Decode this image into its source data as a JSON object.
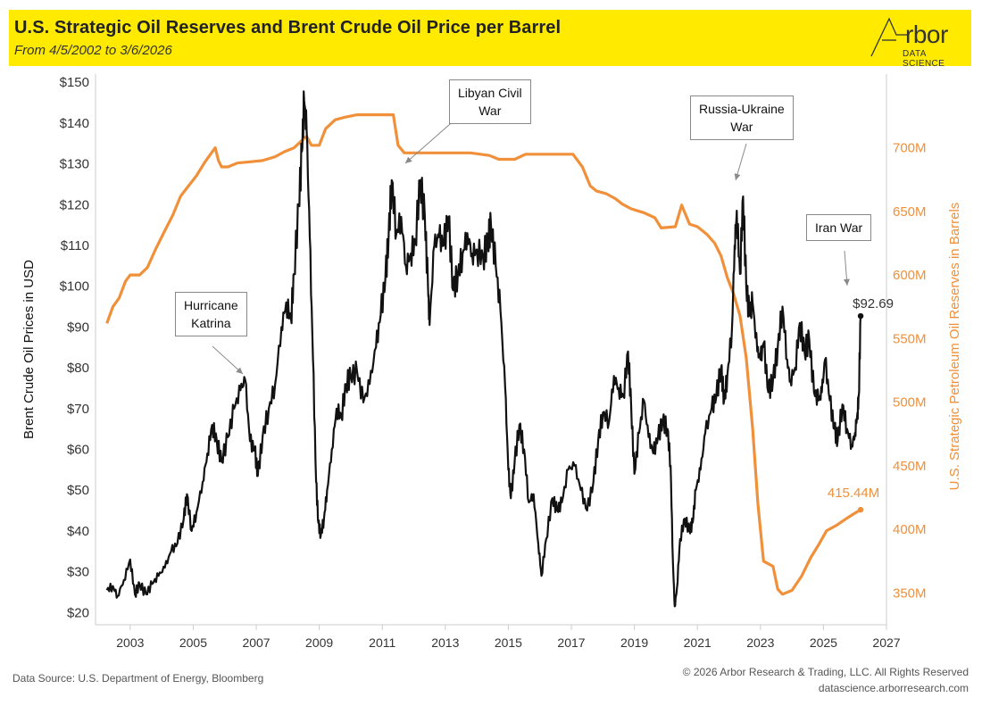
{
  "header": {
    "title": "U.S. Strategic Oil Reserves and Brent Crude Oil Price per Barrel",
    "subtitle": "From 4/5/2002 to 3/6/2026",
    "logo_main": "rbor",
    "logo_sub": "DATA SCIENCE"
  },
  "footer": {
    "source": "Data Source: U.S. Department of Energy, Bloomberg",
    "copyright": "© 2026 Arbor Research & Trading, LLC. All Rights Reserved",
    "website": "datascience.arborresearch.com"
  },
  "annotations": {
    "katrina_line1": "Hurricane",
    "katrina_line2": "Katrina",
    "libya_line1": "Libyan Civil",
    "libya_line2": "War",
    "russia_line1": "Russia-Ukraine",
    "russia_line2": "War",
    "iran": "Iran War"
  },
  "chart_data": {
    "type": "line",
    "title": "U.S. Strategic Oil Reserves and Brent Crude Oil Price per Barrel",
    "subtitle": "From 4/5/2002 to 3/6/2026",
    "xlabel": "",
    "ylabel": "Brent Crude Oil Prices in USD",
    "y2label": "U.S. Strategic Petroleum Oil Reserves in Barrels",
    "xlim": [
      2001.9,
      2027.0
    ],
    "ylim": [
      17,
      152
    ],
    "y2lim": [
      325,
      758
    ],
    "x_ticks": [
      2003,
      2005,
      2007,
      2009,
      2011,
      2013,
      2015,
      2017,
      2019,
      2021,
      2023,
      2025,
      2027
    ],
    "y_ticks": [
      20,
      30,
      40,
      50,
      60,
      70,
      80,
      90,
      100,
      110,
      120,
      130,
      140,
      150
    ],
    "y_tick_labels": [
      "$20",
      "$30",
      "$40",
      "$50",
      "$60",
      "$70",
      "$80",
      "$90",
      "$100",
      "$110",
      "$120",
      "$130",
      "$140",
      "$150"
    ],
    "y2_ticks": [
      350,
      400,
      450,
      500,
      550,
      600,
      650,
      700
    ],
    "y2_tick_labels": [
      "350M",
      "400M",
      "450M",
      "500M",
      "550M",
      "600M",
      "650M",
      "700M"
    ],
    "grid": false,
    "series": [
      {
        "name": "Brent Crude Oil Price (USD)",
        "axis": "left",
        "color": "#111111",
        "end_label": "$92.69",
        "points": [
          [
            2002.26,
            25.5
          ],
          [
            2002.45,
            26.5
          ],
          [
            2002.6,
            24.0
          ],
          [
            2002.8,
            28.0
          ],
          [
            2003.0,
            33.0
          ],
          [
            2003.15,
            24.5
          ],
          [
            2003.3,
            27.0
          ],
          [
            2003.5,
            24.5
          ],
          [
            2003.7,
            27.0
          ],
          [
            2003.9,
            29.0
          ],
          [
            2004.1,
            31.0
          ],
          [
            2004.3,
            35.0
          ],
          [
            2004.5,
            37.0
          ],
          [
            2004.7,
            43.0
          ],
          [
            2004.8,
            49.0
          ],
          [
            2004.95,
            40.0
          ],
          [
            2005.1,
            44.5
          ],
          [
            2005.3,
            52.0
          ],
          [
            2005.45,
            59.0
          ],
          [
            2005.6,
            66.0
          ],
          [
            2005.75,
            62.0
          ],
          [
            2005.9,
            57.0
          ],
          [
            2006.1,
            63.0
          ],
          [
            2006.3,
            70.0
          ],
          [
            2006.5,
            74.5
          ],
          [
            2006.65,
            77.0
          ],
          [
            2006.8,
            62.0
          ],
          [
            2006.95,
            60.0
          ],
          [
            2007.05,
            53.5
          ],
          [
            2007.2,
            63.0
          ],
          [
            2007.4,
            70.0
          ],
          [
            2007.6,
            76.0
          ],
          [
            2007.8,
            90.0
          ],
          [
            2007.95,
            96.0
          ],
          [
            2008.1,
            92.0
          ],
          [
            2008.2,
            103.0
          ],
          [
            2008.35,
            120.0
          ],
          [
            2008.45,
            133.0
          ],
          [
            2008.52,
            145.5
          ],
          [
            2008.6,
            138.0
          ],
          [
            2008.7,
            112.0
          ],
          [
            2008.8,
            82.0
          ],
          [
            2008.9,
            52.0
          ],
          [
            2008.97,
            42.0
          ],
          [
            2009.05,
            39.0
          ],
          [
            2009.15,
            43.0
          ],
          [
            2009.25,
            50.0
          ],
          [
            2009.4,
            60.0
          ],
          [
            2009.55,
            70.0
          ],
          [
            2009.7,
            68.0
          ],
          [
            2009.85,
            76.0
          ],
          [
            2010.0,
            78.0
          ],
          [
            2010.2,
            79.0
          ],
          [
            2010.4,
            71.5
          ],
          [
            2010.6,
            76.0
          ],
          [
            2010.8,
            85.0
          ],
          [
            2010.95,
            93.0
          ],
          [
            2011.1,
            102.0
          ],
          [
            2011.2,
            112.0
          ],
          [
            2011.3,
            126.0
          ],
          [
            2011.45,
            113.0
          ],
          [
            2011.6,
            117.0
          ],
          [
            2011.75,
            105.0
          ],
          [
            2011.9,
            108.0
          ],
          [
            2012.05,
            111.0
          ],
          [
            2012.2,
            126.0
          ],
          [
            2012.35,
            117.0
          ],
          [
            2012.45,
            100.0
          ],
          [
            2012.5,
            90.5
          ],
          [
            2012.65,
            110.0
          ],
          [
            2012.8,
            112.0
          ],
          [
            2012.95,
            110.0
          ],
          [
            2013.1,
            117.0
          ],
          [
            2013.25,
            99.0
          ],
          [
            2013.4,
            103.0
          ],
          [
            2013.55,
            108.0
          ],
          [
            2013.7,
            113.0
          ],
          [
            2013.85,
            108.0
          ],
          [
            2014.0,
            109.0
          ],
          [
            2014.2,
            107.0
          ],
          [
            2014.35,
            111.0
          ],
          [
            2014.45,
            115.0
          ],
          [
            2014.6,
            105.0
          ],
          [
            2014.75,
            94.0
          ],
          [
            2014.9,
            75.0
          ],
          [
            2015.0,
            55.0
          ],
          [
            2015.08,
            48.0
          ],
          [
            2015.2,
            57.0
          ],
          [
            2015.35,
            66.0
          ],
          [
            2015.5,
            60.0
          ],
          [
            2015.65,
            47.0
          ],
          [
            2015.8,
            49.0
          ],
          [
            2015.95,
            37.0
          ],
          [
            2016.05,
            29.0
          ],
          [
            2016.2,
            38.0
          ],
          [
            2016.4,
            48.0
          ],
          [
            2016.55,
            45.0
          ],
          [
            2016.7,
            47.0
          ],
          [
            2016.9,
            55.0
          ],
          [
            2017.1,
            56.0
          ],
          [
            2017.3,
            50.0
          ],
          [
            2017.5,
            45.0
          ],
          [
            2017.7,
            52.0
          ],
          [
            2017.85,
            62.0
          ],
          [
            2018.0,
            69.0
          ],
          [
            2018.2,
            67.0
          ],
          [
            2018.35,
            78.0
          ],
          [
            2018.5,
            75.0
          ],
          [
            2018.65,
            73.0
          ],
          [
            2018.8,
            84.0
          ],
          [
            2018.9,
            70.0
          ],
          [
            2019.0,
            54.0
          ],
          [
            2019.15,
            64.0
          ],
          [
            2019.3,
            72.0
          ],
          [
            2019.45,
            63.0
          ],
          [
            2019.6,
            59.0
          ],
          [
            2019.75,
            63.0
          ],
          [
            2019.9,
            67.0
          ],
          [
            2020.05,
            65.0
          ],
          [
            2020.15,
            56.0
          ],
          [
            2020.22,
            33.0
          ],
          [
            2020.28,
            21.5
          ],
          [
            2020.35,
            26.0
          ],
          [
            2020.45,
            38.0
          ],
          [
            2020.6,
            43.0
          ],
          [
            2020.75,
            40.0
          ],
          [
            2020.85,
            42.0
          ],
          [
            2020.95,
            50.0
          ],
          [
            2021.1,
            55.0
          ],
          [
            2021.25,
            64.0
          ],
          [
            2021.45,
            70.0
          ],
          [
            2021.6,
            73.0
          ],
          [
            2021.75,
            80.0
          ],
          [
            2021.85,
            72.0
          ],
          [
            2021.95,
            78.0
          ],
          [
            2022.1,
            90.0
          ],
          [
            2022.18,
            110.0
          ],
          [
            2022.25,
            118.5
          ],
          [
            2022.35,
            103.0
          ],
          [
            2022.45,
            122.0
          ],
          [
            2022.55,
            100.0
          ],
          [
            2022.65,
            93.0
          ],
          [
            2022.75,
            96.0
          ],
          [
            2022.9,
            84.0
          ],
          [
            2023.0,
            82.0
          ],
          [
            2023.1,
            86.0
          ],
          [
            2023.25,
            74.0
          ],
          [
            2023.4,
            77.0
          ],
          [
            2023.55,
            85.0
          ],
          [
            2023.7,
            95.0
          ],
          [
            2023.85,
            82.0
          ],
          [
            2023.95,
            77.0
          ],
          [
            2024.1,
            80.0
          ],
          [
            2024.25,
            91.0
          ],
          [
            2024.4,
            84.0
          ],
          [
            2024.55,
            87.0
          ],
          [
            2024.7,
            74.0
          ],
          [
            2024.85,
            72.0
          ],
          [
            2024.95,
            74.0
          ],
          [
            2025.05,
            82.0
          ],
          [
            2025.2,
            72.0
          ],
          [
            2025.35,
            65.0
          ],
          [
            2025.45,
            62.0
          ],
          [
            2025.6,
            71.0
          ],
          [
            2025.75,
            65.0
          ],
          [
            2025.9,
            61.0
          ],
          [
            2026.0,
            64.0
          ],
          [
            2026.08,
            69.0
          ],
          [
            2026.12,
            73.0
          ],
          [
            2026.18,
            92.69
          ]
        ]
      },
      {
        "name": "U.S. Strategic Petroleum Reserves (Barrels)",
        "axis": "right",
        "color": "#f0903a",
        "end_label": "415.44M",
        "points": [
          [
            2002.26,
            562
          ],
          [
            2002.45,
            575
          ],
          [
            2002.65,
            582
          ],
          [
            2002.85,
            595
          ],
          [
            2003.0,
            600
          ],
          [
            2003.3,
            600
          ],
          [
            2003.55,
            606
          ],
          [
            2003.8,
            620
          ],
          [
            2004.1,
            635
          ],
          [
            2004.35,
            647
          ],
          [
            2004.6,
            662
          ],
          [
            2004.85,
            670
          ],
          [
            2005.1,
            678
          ],
          [
            2005.35,
            688
          ],
          [
            2005.55,
            695
          ],
          [
            2005.7,
            700
          ],
          [
            2005.8,
            690
          ],
          [
            2005.9,
            685
          ],
          [
            2006.1,
            685
          ],
          [
            2006.4,
            688
          ],
          [
            2006.8,
            689
          ],
          [
            2007.2,
            690
          ],
          [
            2007.6,
            693
          ],
          [
            2007.9,
            697
          ],
          [
            2008.2,
            700
          ],
          [
            2008.5,
            707
          ],
          [
            2008.6,
            709
          ],
          [
            2008.75,
            702
          ],
          [
            2009.0,
            702
          ],
          [
            2009.2,
            715
          ],
          [
            2009.5,
            722
          ],
          [
            2009.8,
            724
          ],
          [
            2010.2,
            726
          ],
          [
            2010.6,
            726
          ],
          [
            2010.9,
            726
          ],
          [
            2011.35,
            726
          ],
          [
            2011.5,
            702
          ],
          [
            2011.7,
            696
          ],
          [
            2012.2,
            696
          ],
          [
            2012.8,
            696
          ],
          [
            2013.3,
            696
          ],
          [
            2013.8,
            696
          ],
          [
            2014.4,
            694
          ],
          [
            2014.7,
            691
          ],
          [
            2015.2,
            691
          ],
          [
            2015.55,
            695
          ],
          [
            2016.0,
            695
          ],
          [
            2016.6,
            695
          ],
          [
            2017.05,
            695
          ],
          [
            2017.35,
            685
          ],
          [
            2017.6,
            670
          ],
          [
            2017.8,
            666
          ],
          [
            2018.1,
            664
          ],
          [
            2018.4,
            660
          ],
          [
            2018.6,
            656
          ],
          [
            2018.9,
            652
          ],
          [
            2019.3,
            649
          ],
          [
            2019.65,
            645
          ],
          [
            2019.85,
            637
          ],
          [
            2020.3,
            638
          ],
          [
            2020.5,
            655
          ],
          [
            2020.75,
            640
          ],
          [
            2021.0,
            638
          ],
          [
            2021.3,
            632
          ],
          [
            2021.55,
            625
          ],
          [
            2021.75,
            615
          ],
          [
            2021.95,
            598
          ],
          [
            2022.15,
            585
          ],
          [
            2022.35,
            568
          ],
          [
            2022.55,
            535
          ],
          [
            2022.75,
            480
          ],
          [
            2022.92,
            420
          ],
          [
            2023.1,
            375
          ],
          [
            2023.4,
            371
          ],
          [
            2023.55,
            353
          ],
          [
            2023.7,
            349
          ],
          [
            2024.0,
            352
          ],
          [
            2024.3,
            363
          ],
          [
            2024.6,
            378
          ],
          [
            2024.85,
            388
          ],
          [
            2025.1,
            399
          ],
          [
            2025.4,
            403
          ],
          [
            2025.7,
            408
          ],
          [
            2025.95,
            412
          ],
          [
            2026.18,
            415.44
          ]
        ]
      }
    ],
    "annotations": [
      "Hurricane Katrina",
      "Libyan Civil War",
      "Russia-Ukraine War",
      "Iran War"
    ]
  }
}
